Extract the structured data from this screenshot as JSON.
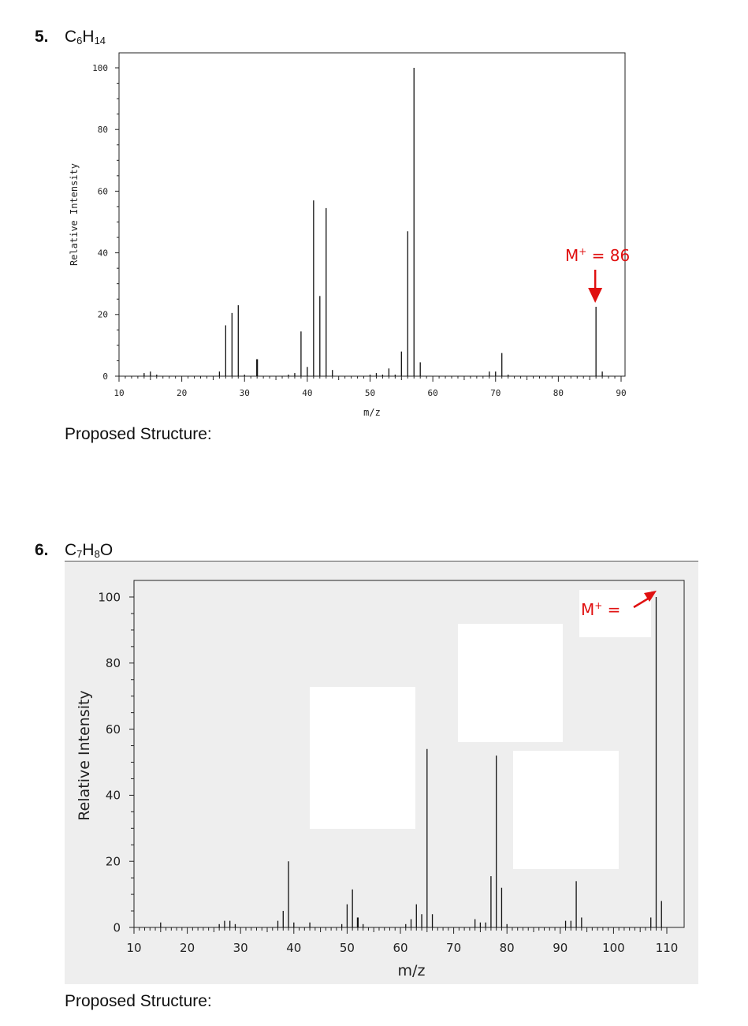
{
  "questions": [
    {
      "number": "5.",
      "formula": [
        {
          "t": "C"
        },
        {
          "s": "6"
        },
        {
          "t": "H"
        },
        {
          "s": "14"
        }
      ],
      "proposed_label": "Proposed Structure:",
      "annotation": {
        "prefix": "M",
        "sup": "+",
        "suffix": " = 86"
      }
    },
    {
      "number": "6.",
      "formula": [
        {
          "t": "C"
        },
        {
          "s": "7"
        },
        {
          "t": "H"
        },
        {
          "s": "8"
        },
        {
          "t": "O"
        }
      ],
      "proposed_label": "Proposed Structure:",
      "annotation": {
        "prefix": "M",
        "sup": "+",
        "suffix": " ="
      }
    }
  ],
  "colors": {
    "annotation": "#e01010",
    "bars": "#111111",
    "panel_bg": "#eeeeee",
    "mask": "#ffffff"
  },
  "chart_data": [
    {
      "type": "bar",
      "title": "",
      "xlabel": "m/z",
      "ylabel": "Relative Intensity",
      "xlim": [
        10,
        90
      ],
      "ylim": [
        0,
        100
      ],
      "x_ticks": [
        10,
        20,
        30,
        40,
        50,
        60,
        70,
        80,
        90
      ],
      "y_ticks": [
        0,
        20,
        40,
        60,
        80,
        100
      ],
      "grid": false,
      "peaks": [
        {
          "mz": 14,
          "intensity": 1
        },
        {
          "mz": 15,
          "intensity": 1.5
        },
        {
          "mz": 16,
          "intensity": 0.5
        },
        {
          "mz": 26,
          "intensity": 1.5
        },
        {
          "mz": 27,
          "intensity": 16.5
        },
        {
          "mz": 28,
          "intensity": 20.5
        },
        {
          "mz": 29,
          "intensity": 23
        },
        {
          "mz": 30,
          "intensity": 0.5
        },
        {
          "mz": 32,
          "intensity": 5.5
        },
        {
          "mz": 37,
          "intensity": 0.5
        },
        {
          "mz": 38,
          "intensity": 1
        },
        {
          "mz": 39,
          "intensity": 14.5
        },
        {
          "mz": 40,
          "intensity": 3
        },
        {
          "mz": 41,
          "intensity": 57
        },
        {
          "mz": 42,
          "intensity": 26
        },
        {
          "mz": 43,
          "intensity": 54.5
        },
        {
          "mz": 44,
          "intensity": 2
        },
        {
          "mz": 50,
          "intensity": 0.5
        },
        {
          "mz": 51,
          "intensity": 1
        },
        {
          "mz": 52,
          "intensity": 0.5
        },
        {
          "mz": 53,
          "intensity": 2.5
        },
        {
          "mz": 54,
          "intensity": 0.5
        },
        {
          "mz": 55,
          "intensity": 8
        },
        {
          "mz": 56,
          "intensity": 47
        },
        {
          "mz": 57,
          "intensity": 100
        },
        {
          "mz": 58,
          "intensity": 4.5
        },
        {
          "mz": 69,
          "intensity": 1.5
        },
        {
          "mz": 70,
          "intensity": 1.5
        },
        {
          "mz": 71,
          "intensity": 7.5
        },
        {
          "mz": 72,
          "intensity": 0.5
        },
        {
          "mz": 86,
          "intensity": 22.5
        },
        {
          "mz": 87,
          "intensity": 1.5
        }
      ],
      "annotation_mz": 86
    },
    {
      "type": "bar",
      "title": "",
      "xlabel": "m/z",
      "ylabel": "Relative Intensity",
      "xlim": [
        10,
        110
      ],
      "ylim": [
        0,
        100
      ],
      "x_ticks": [
        10,
        20,
        30,
        40,
        50,
        60,
        70,
        80,
        90,
        100,
        110
      ],
      "y_ticks": [
        0,
        20,
        40,
        60,
        80,
        100
      ],
      "grid": false,
      "peaks": [
        {
          "mz": 15,
          "intensity": 1.5
        },
        {
          "mz": 26,
          "intensity": 1
        },
        {
          "mz": 27,
          "intensity": 2
        },
        {
          "mz": 28,
          "intensity": 2
        },
        {
          "mz": 29,
          "intensity": 1
        },
        {
          "mz": 37,
          "intensity": 2
        },
        {
          "mz": 38,
          "intensity": 5
        },
        {
          "mz": 39,
          "intensity": 20
        },
        {
          "mz": 40,
          "intensity": 1.5
        },
        {
          "mz": 43,
          "intensity": 1.5
        },
        {
          "mz": 49,
          "intensity": 1
        },
        {
          "mz": 50,
          "intensity": 7
        },
        {
          "mz": 51,
          "intensity": 11.5
        },
        {
          "mz": 52,
          "intensity": 3
        },
        {
          "mz": 53,
          "intensity": 1
        },
        {
          "mz": 61,
          "intensity": 1
        },
        {
          "mz": 62,
          "intensity": 2.5
        },
        {
          "mz": 63,
          "intensity": 7
        },
        {
          "mz": 64,
          "intensity": 4
        },
        {
          "mz": 65,
          "intensity": 54
        },
        {
          "mz": 66,
          "intensity": 4
        },
        {
          "mz": 74,
          "intensity": 2.5
        },
        {
          "mz": 75,
          "intensity": 1.5
        },
        {
          "mz": 76,
          "intensity": 1.5
        },
        {
          "mz": 77,
          "intensity": 15.5
        },
        {
          "mz": 78,
          "intensity": 52
        },
        {
          "mz": 79,
          "intensity": 12
        },
        {
          "mz": 80,
          "intensity": 1
        },
        {
          "mz": 91,
          "intensity": 2
        },
        {
          "mz": 92,
          "intensity": 2
        },
        {
          "mz": 93,
          "intensity": 14
        },
        {
          "mz": 94,
          "intensity": 3
        },
        {
          "mz": 107,
          "intensity": 3
        },
        {
          "mz": 108,
          "intensity": 100
        },
        {
          "mz": 109,
          "intensity": 8
        }
      ]
    }
  ]
}
